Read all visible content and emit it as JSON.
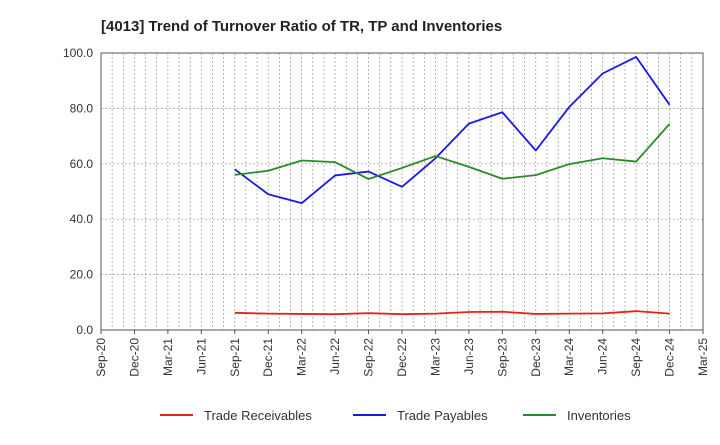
{
  "chart_data": {
    "type": "line",
    "title": "[4013]  Trend of Turnover Ratio of TR, TP and Inventories",
    "xlabel": "",
    "ylabel": "",
    "ylim": [
      0,
      100
    ],
    "yticks": [
      "0.0",
      "20.0",
      "40.0",
      "60.0",
      "80.0",
      "100.0"
    ],
    "ytick_values": [
      0,
      20,
      40,
      60,
      80,
      100
    ],
    "xticks": [
      "Sep-20",
      "Dec-20",
      "Mar-21",
      "Jun-21",
      "Sep-21",
      "Dec-21",
      "Mar-22",
      "Jun-22",
      "Sep-22",
      "Dec-22",
      "Mar-23",
      "Jun-23",
      "Sep-23",
      "Dec-23",
      "Mar-24",
      "Jun-24",
      "Sep-24",
      "Dec-24",
      "Mar-25"
    ],
    "x": [
      "Sep-21",
      "Dec-21",
      "Mar-22",
      "Jun-22",
      "Sep-22",
      "Dec-22",
      "Mar-23",
      "Jun-23",
      "Sep-23",
      "Dec-23",
      "Mar-24",
      "Jun-24",
      "Sep-24",
      "Dec-24"
    ],
    "grid": true,
    "legend_position": "bottom",
    "series": [
      {
        "name": "Trade Receivables",
        "color": "#e8201a",
        "values": [
          6.2,
          5.9,
          5.8,
          5.7,
          6.1,
          5.7,
          5.9,
          6.5,
          6.6,
          5.8,
          5.9,
          6.0,
          6.8,
          5.9
        ]
      },
      {
        "name": "Trade Payables",
        "color": "#1a1ae0",
        "values": [
          58.0,
          49.0,
          45.8,
          55.8,
          57.2,
          51.7,
          62.0,
          74.5,
          78.6,
          64.8,
          80.5,
          92.6,
          98.6,
          81.3
        ]
      },
      {
        "name": "Inventories",
        "color": "#2a8a2a",
        "values": [
          56.0,
          57.5,
          61.2,
          60.6,
          54.5,
          58.5,
          62.8,
          58.9,
          54.6,
          55.9,
          59.9,
          62.0,
          60.8,
          74.4
        ]
      }
    ]
  }
}
